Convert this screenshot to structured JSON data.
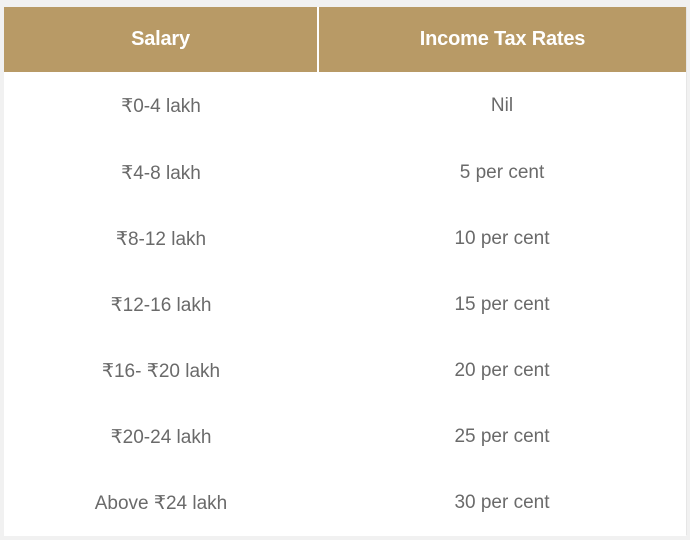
{
  "table": {
    "headers": [
      "Salary",
      "Income Tax Rates"
    ],
    "rows": [
      [
        "₹0-4 lakh",
        "Nil"
      ],
      [
        "₹4-8 lakh",
        "5 per cent"
      ],
      [
        "₹8-12 lakh",
        "10 per cent"
      ],
      [
        "₹12-16 lakh",
        "15 per cent"
      ],
      [
        "₹16- ₹20 lakh",
        "20 per cent"
      ],
      [
        "₹20-24 lakh",
        "25 per cent"
      ],
      [
        "Above ₹24 lakh",
        "30 per cent"
      ]
    ]
  },
  "colors": {
    "header_bg": "#b89a66",
    "header_text": "#ffffff",
    "cell_text": "#6a6a6a"
  }
}
